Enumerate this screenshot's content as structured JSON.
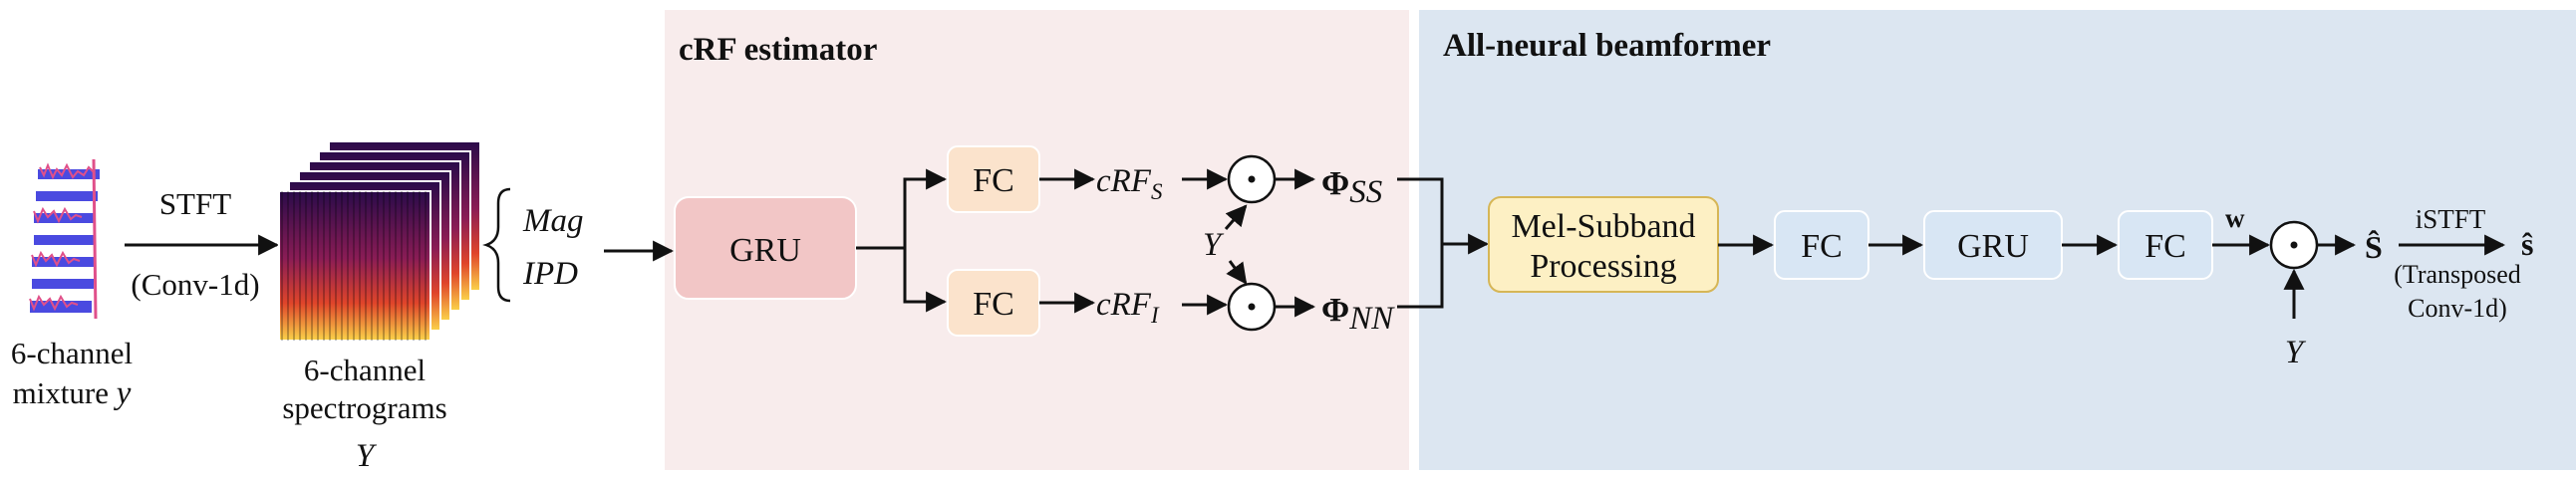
{
  "colors": {
    "crf_panel": "#f8ecec",
    "beamformer_panel": "#dce6f1",
    "gru_red": "#f2c6c6",
    "fc_orange": "#fbe3cc",
    "mel_yellow": "#fdf0c4",
    "mel_border": "#d6b656",
    "blue_box": "#d8e6f4"
  },
  "sections": {
    "crf": "cRF estimator",
    "beam": "All-neural beamformer"
  },
  "input": {
    "mixture_line1": "6-channel",
    "mixture_line2": "mixture ",
    "mixture_var": "y",
    "stft": "STFT",
    "conv": "(Conv-1d)",
    "spec_line1": "6-channel",
    "spec_line2": "spectrograms",
    "spec_var": "Y",
    "mag": "Mag",
    "ipd": "IPD"
  },
  "crf": {
    "gru": "GRU",
    "fc_top": "FC",
    "fc_bottom": "FC",
    "crf_s": "cRF",
    "crf_s_sub": "S",
    "crf_i": "cRF",
    "crf_i_sub": "I",
    "y_label": "Y",
    "phi": "Φ",
    "phi_ss_sub": "SS",
    "phi_nn_sub": "NN",
    "odot": "⊙"
  },
  "beam": {
    "mel_line1": "Mel-Subband",
    "mel_line2": "Processing",
    "fc1": "FC",
    "gru": "GRU",
    "fc2": "FC",
    "w": "w",
    "y_label": "Y",
    "s_hat": "Ŝ",
    "istft": "iSTFT",
    "transposed_line1": "(Transposed",
    "transposed_line2": "Conv-1d)",
    "s_out": "ŝ"
  }
}
